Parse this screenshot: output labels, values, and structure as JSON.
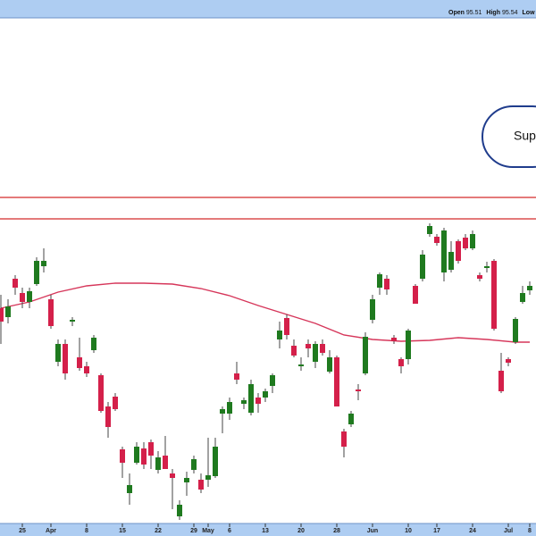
{
  "chart_data": {
    "type": "candlestick",
    "header": [
      {
        "label": "Open",
        "value": 95.51
      },
      {
        "label": "High",
        "value": 95.54
      },
      {
        "label": "Low"
      }
    ],
    "annotation": "Sup",
    "open": [
      94.25,
      93.75,
      95.9,
      95.1,
      94.6,
      95.6,
      96.6,
      94.75,
      91.25,
      92.25,
      93.5,
      91.5,
      91,
      91.9,
      90.5,
      88.75,
      89.3,
      86.35,
      83.9,
      85.6,
      86.4,
      86.75,
      85.2,
      86,
      85,
      82.6,
      84.5,
      85.2,
      84.65,
      84.65,
      84.85,
      88.35,
      88.35,
      90.6,
      88.9,
      88.4,
      89.25,
      89.25,
      89.9,
      92.5,
      93.7,
      92.15,
      91,
      92.25,
      91.25,
      92.25,
      90.7,
      91.5,
      87.35,
      87.75,
      89.7,
      90.6,
      93.6,
      95.4,
      95.9,
      92.6,
      91.4,
      91.4,
      95.5,
      95.9,
      98.4,
      98.25,
      96.25,
      96.4,
      98,
      98.2,
      97.6,
      96.1,
      96.5,
      96.9,
      90.75,
      91.4,
      92.35,
      94.6,
      95.25
    ],
    "high": [
      95,
      94.75,
      96.1,
      95.4,
      95.4,
      97.1,
      97.6,
      95,
      92.5,
      92.5,
      93.75,
      92.6,
      91.25,
      92.75,
      90.6,
      89,
      89.5,
      86.5,
      85,
      86.75,
      86.75,
      86.9,
      86.25,
      87.1,
      85.25,
      83.5,
      85.1,
      86,
      85,
      87,
      87,
      88.75,
      89.25,
      91.25,
      89.25,
      90.25,
      89.5,
      89.75,
      90.6,
      93.5,
      93.9,
      92.5,
      91.5,
      92.5,
      92.4,
      92.5,
      91.9,
      91.6,
      87.5,
      88.5,
      90,
      92.9,
      95,
      96.25,
      96.1,
      92.75,
      91.5,
      93.1,
      95.6,
      97.5,
      99,
      98.4,
      98.75,
      98,
      98.1,
      98.4,
      98.6,
      96.25,
      96.85,
      97,
      91.75,
      91.5,
      93.75,
      95.5,
      95.75
    ],
    "low": [
      92.25,
      93.4,
      95,
      94.25,
      94.25,
      95.5,
      96.25,
      93.1,
      91,
      90.25,
      93.25,
      90.75,
      90.4,
      91.75,
      88.4,
      87,
      88.5,
      84.75,
      83.25,
      85.5,
      85.25,
      85.25,
      85,
      85.25,
      83,
      82.4,
      83.75,
      85,
      83.9,
      84.25,
      84.75,
      87.25,
      88,
      90,
      88.6,
      88.25,
      88.4,
      89,
      89.5,
      92,
      92.5,
      91.5,
      90.75,
      91.5,
      90.9,
      91.6,
      90.6,
      88.75,
      85.9,
      87.6,
      89.1,
      90.5,
      93.4,
      95,
      95,
      92.25,
      90.6,
      91.1,
      94.5,
      95.75,
      98.25,
      97.75,
      95.75,
      96.25,
      96.75,
      97.5,
      97.5,
      95.75,
      96.25,
      93,
      89.5,
      91,
      92.25,
      94.5,
      95
    ],
    "close": [
      93.5,
      94.35,
      95.4,
      94.6,
      95.2,
      96.9,
      96.9,
      93.25,
      92.25,
      90.6,
      93.6,
      90.9,
      90.6,
      92.6,
      88.5,
      87.6,
      88.6,
      85.6,
      84.35,
      86.5,
      85.5,
      86,
      85.9,
      85.25,
      84.75,
      83.25,
      84.75,
      85.8,
      84.1,
      84.9,
      86.5,
      88.6,
      89,
      90.25,
      89.1,
      90,
      88.9,
      89.6,
      90.5,
      93,
      92.75,
      91.6,
      91.1,
      92,
      92.25,
      91.75,
      91.5,
      88.75,
      86.5,
      88.35,
      89.6,
      92.65,
      94.75,
      96.15,
      95.3,
      92.4,
      91,
      93,
      94.5,
      97.25,
      98.85,
      97.9,
      98.6,
      97.4,
      96.9,
      97.6,
      98.4,
      95.9,
      96.6,
      93.1,
      89.6,
      91.2,
      93.65,
      95.1,
      95.5
    ],
    "up_color": "#1f7a1f",
    "down_color": "#d4204a",
    "moving_average": {
      "x": [
        0,
        4,
        8,
        12,
        16,
        20,
        24,
        28,
        32,
        36,
        40,
        44,
        48,
        52,
        56,
        60,
        64,
        68,
        72,
        74
      ],
      "values": [
        94.25,
        94.6,
        95.15,
        95.5,
        95.65,
        95.65,
        95.6,
        95.35,
        94.95,
        94.4,
        93.9,
        93.4,
        92.75,
        92.5,
        92.4,
        92.45,
        92.6,
        92.5,
        92.35,
        92.35
      ],
      "color": "#d6365a"
    },
    "hlines": {
      "values": [
        100.45,
        99.25
      ],
      "color": "#d42a2a"
    },
    "xlim": [
      -0.125,
      74.875
    ],
    "xticks": [
      {
        "value": 3,
        "label": "25"
      },
      {
        "value": 7,
        "label": "Apr"
      },
      {
        "value": 12,
        "label": "8"
      },
      {
        "value": 17,
        "label": "15"
      },
      {
        "value": 22,
        "label": "22"
      },
      {
        "value": 27,
        "label": "29"
      },
      {
        "value": 29,
        "label": "May"
      },
      {
        "value": 32,
        "label": "6"
      },
      {
        "value": 37,
        "label": "13"
      },
      {
        "value": 42,
        "label": "20"
      },
      {
        "value": 47,
        "label": "28"
      },
      {
        "value": 52,
        "label": "Jun"
      },
      {
        "value": 57,
        "label": "10"
      },
      {
        "value": 61,
        "label": "17"
      },
      {
        "value": 66,
        "label": "24"
      },
      {
        "value": 71,
        "label": "Jul"
      },
      {
        "value": 74,
        "label": "8"
      }
    ],
    "ylim": [
      82.5,
      110.5
    ]
  }
}
